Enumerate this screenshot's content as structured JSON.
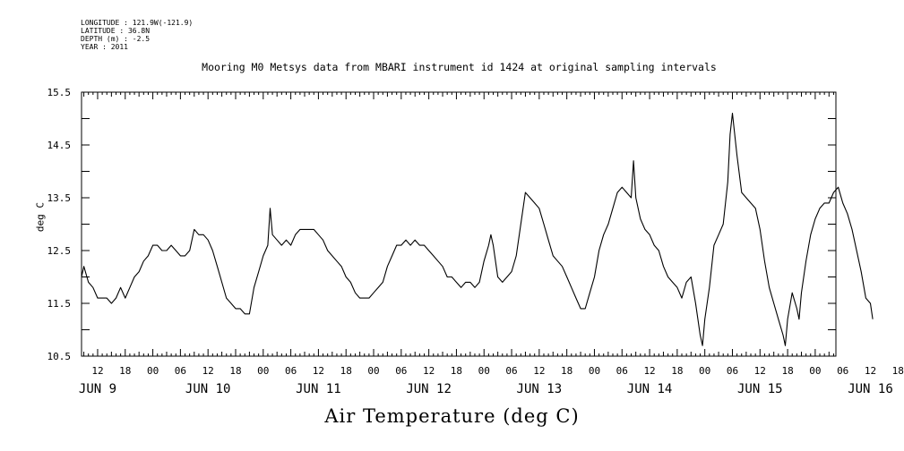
{
  "meta": {
    "longitude": "LONGITUDE : 121.9W(-121.9)",
    "latitude": "LATITUDE : 36.8N",
    "depth": "DEPTH (m) : -2.5",
    "year": "YEAR : 2011"
  },
  "chart_data": {
    "type": "line",
    "title": "Mooring M0 Metsys data from MBARI instrument id 1424 at original sampling intervals",
    "xlabel": "Air Temperature (deg C)",
    "ylabel": "deg C",
    "ylim": [
      10.5,
      15.5
    ],
    "y_ticks": [
      "10.5",
      "11.5",
      "12.5",
      "13.5",
      "14.5",
      "15.5"
    ],
    "x_unit": "hours since JUN 9 00:00 (2011)",
    "xlim": [
      8.5,
      172.5
    ],
    "hour_ticks": [
      "12",
      "18",
      "00",
      "06",
      "12",
      "18",
      "00",
      "06",
      "12",
      "18",
      "00",
      "06",
      "12",
      "18",
      "00",
      "06",
      "12",
      "18",
      "00",
      "06",
      "12",
      "18",
      "00",
      "06",
      "12",
      "18",
      "00",
      "06",
      "12",
      "18",
      "00",
      "06"
    ],
    "day_labels": [
      "JUN  9",
      "JUN 10",
      "JUN 11",
      "JUN 12",
      "JUN 13",
      "JUN 14",
      "JUN 15",
      "JUN 16"
    ],
    "grid": false,
    "series": [
      {
        "name": "",
        "color": "#000000",
        "points": [
          [
            8.5,
            12.0
          ],
          [
            9,
            12.2
          ],
          [
            10,
            11.9
          ],
          [
            11,
            11.8
          ],
          [
            12,
            11.6
          ],
          [
            13,
            11.6
          ],
          [
            14,
            11.6
          ],
          [
            15,
            11.5
          ],
          [
            16,
            11.6
          ],
          [
            17,
            11.8
          ],
          [
            18,
            11.6
          ],
          [
            19,
            11.8
          ],
          [
            20,
            12.0
          ],
          [
            21,
            12.1
          ],
          [
            22,
            12.3
          ],
          [
            23,
            12.4
          ],
          [
            24,
            12.6
          ],
          [
            25,
            12.6
          ],
          [
            26,
            12.5
          ],
          [
            27,
            12.5
          ],
          [
            28,
            12.6
          ],
          [
            29,
            12.5
          ],
          [
            30,
            12.4
          ],
          [
            31,
            12.4
          ],
          [
            32,
            12.5
          ],
          [
            33,
            12.9
          ],
          [
            34,
            12.8
          ],
          [
            35,
            12.8
          ],
          [
            36,
            12.7
          ],
          [
            37,
            12.5
          ],
          [
            38,
            12.2
          ],
          [
            39,
            11.9
          ],
          [
            40,
            11.6
          ],
          [
            41,
            11.5
          ],
          [
            42,
            11.4
          ],
          [
            43,
            11.4
          ],
          [
            44,
            11.3
          ],
          [
            45,
            11.3
          ],
          [
            46,
            11.8
          ],
          [
            47,
            12.1
          ],
          [
            48,
            12.4
          ],
          [
            49,
            12.6
          ],
          [
            49.5,
            13.3
          ],
          [
            50,
            12.8
          ],
          [
            51,
            12.7
          ],
          [
            52,
            12.6
          ],
          [
            53,
            12.7
          ],
          [
            54,
            12.6
          ],
          [
            55,
            12.8
          ],
          [
            56,
            12.9
          ],
          [
            57,
            12.9
          ],
          [
            58,
            12.9
          ],
          [
            59,
            12.9
          ],
          [
            60,
            12.8
          ],
          [
            61,
            12.7
          ],
          [
            62,
            12.5
          ],
          [
            63,
            12.4
          ],
          [
            64,
            12.3
          ],
          [
            65,
            12.2
          ],
          [
            66,
            12.0
          ],
          [
            67,
            11.9
          ],
          [
            68,
            11.7
          ],
          [
            69,
            11.6
          ],
          [
            70,
            11.6
          ],
          [
            71,
            11.6
          ],
          [
            72,
            11.7
          ],
          [
            73,
            11.8
          ],
          [
            74,
            11.9
          ],
          [
            75,
            12.2
          ],
          [
            76,
            12.4
          ],
          [
            77,
            12.6
          ],
          [
            78,
            12.6
          ],
          [
            79,
            12.7
          ],
          [
            80,
            12.6
          ],
          [
            81,
            12.7
          ],
          [
            82,
            12.6
          ],
          [
            83,
            12.6
          ],
          [
            84,
            12.5
          ],
          [
            85,
            12.4
          ],
          [
            86,
            12.3
          ],
          [
            87,
            12.2
          ],
          [
            88,
            12.0
          ],
          [
            89,
            12.0
          ],
          [
            90,
            11.9
          ],
          [
            91,
            11.8
          ],
          [
            92,
            11.9
          ],
          [
            93,
            11.9
          ],
          [
            94,
            11.8
          ],
          [
            95,
            11.9
          ],
          [
            96,
            12.3
          ],
          [
            97,
            12.6
          ],
          [
            97.5,
            12.8
          ],
          [
            98,
            12.6
          ],
          [
            99,
            12.0
          ],
          [
            100,
            11.9
          ],
          [
            101,
            12.0
          ],
          [
            102,
            12.1
          ],
          [
            103,
            12.4
          ],
          [
            104,
            13.0
          ],
          [
            105,
            13.6
          ],
          [
            106,
            13.5
          ],
          [
            107,
            13.4
          ],
          [
            108,
            13.3
          ],
          [
            109,
            13.0
          ],
          [
            110,
            12.7
          ],
          [
            111,
            12.4
          ],
          [
            112,
            12.3
          ],
          [
            113,
            12.2
          ],
          [
            114,
            12.0
          ],
          [
            115,
            11.8
          ],
          [
            116,
            11.6
          ],
          [
            117,
            11.4
          ],
          [
            118,
            11.4
          ],
          [
            119,
            11.7
          ],
          [
            120,
            12.0
          ],
          [
            121,
            12.5
          ],
          [
            122,
            12.8
          ],
          [
            123,
            13.0
          ],
          [
            124,
            13.3
          ],
          [
            125,
            13.6
          ],
          [
            126,
            13.7
          ],
          [
            127,
            13.6
          ],
          [
            128,
            13.5
          ],
          [
            128.5,
            14.2
          ],
          [
            129,
            13.5
          ],
          [
            130,
            13.1
          ],
          [
            131,
            12.9
          ],
          [
            132,
            12.8
          ],
          [
            133,
            12.6
          ],
          [
            134,
            12.5
          ],
          [
            135,
            12.2
          ],
          [
            136,
            12.0
          ],
          [
            137,
            11.9
          ],
          [
            138,
            11.8
          ],
          [
            139,
            11.6
          ],
          [
            140,
            11.9
          ],
          [
            141,
            12.0
          ],
          [
            142,
            11.5
          ],
          [
            143,
            10.9
          ],
          [
            143.5,
            10.7
          ],
          [
            144,
            11.2
          ],
          [
            145,
            11.8
          ],
          [
            146,
            12.6
          ],
          [
            147,
            12.8
          ],
          [
            148,
            13.0
          ],
          [
            149,
            13.8
          ],
          [
            149.5,
            14.7
          ],
          [
            150,
            15.1
          ],
          [
            151,
            14.3
          ],
          [
            152,
            13.6
          ],
          [
            153,
            13.5
          ],
          [
            154,
            13.4
          ],
          [
            155,
            13.3
          ],
          [
            156,
            12.9
          ],
          [
            157,
            12.3
          ],
          [
            158,
            11.8
          ],
          [
            159,
            11.5
          ],
          [
            160,
            11.2
          ],
          [
            161,
            10.9
          ],
          [
            161.5,
            10.7
          ],
          [
            162,
            11.2
          ],
          [
            163,
            11.7
          ],
          [
            164,
            11.4
          ],
          [
            164.5,
            11.2
          ],
          [
            165,
            11.7
          ],
          [
            166,
            12.3
          ],
          [
            167,
            12.8
          ],
          [
            168,
            13.1
          ],
          [
            169,
            13.3
          ],
          [
            170,
            13.4
          ],
          [
            171,
            13.4
          ],
          [
            172,
            13.6
          ],
          [
            173,
            13.7
          ],
          [
            174,
            13.4
          ],
          [
            175,
            13.2
          ],
          [
            176,
            12.9
          ],
          [
            177,
            12.5
          ],
          [
            178,
            12.1
          ],
          [
            179,
            11.6
          ],
          [
            180,
            11.5
          ],
          [
            180.5,
            11.2
          ]
        ]
      }
    ]
  }
}
